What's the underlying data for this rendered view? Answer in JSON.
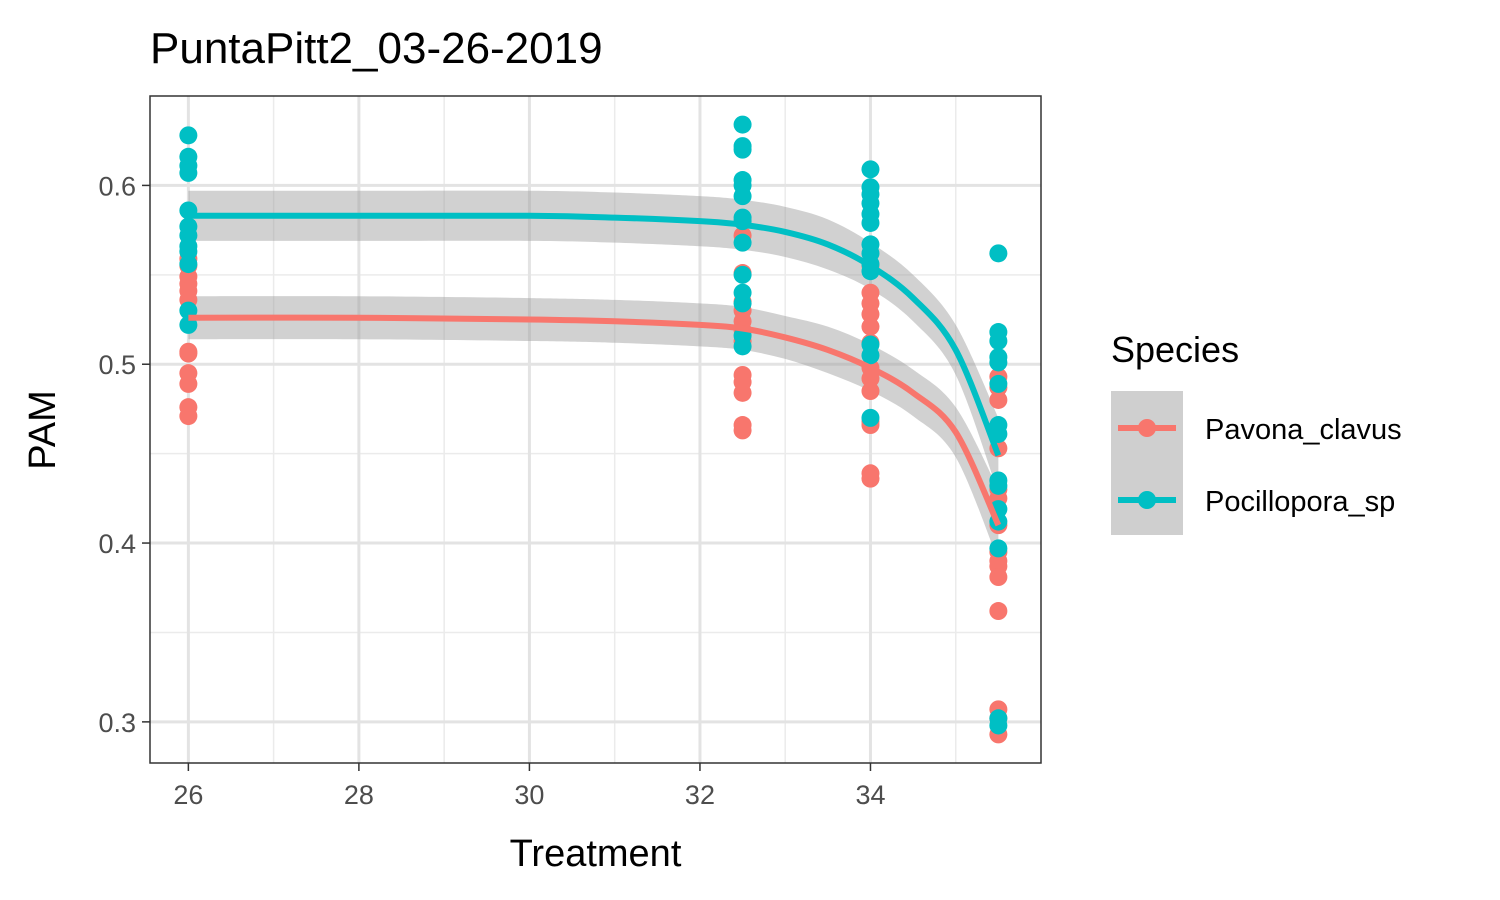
{
  "chart_data": {
    "type": "scatter",
    "title": "PuntaPitt2_03-26-2019",
    "xlabel": "Treatment",
    "ylabel": "PAM",
    "xlim": [
      25.55,
      36.0
    ],
    "ylim": [
      0.277,
      0.65
    ],
    "x_ticks": [
      26,
      28,
      30,
      32,
      34
    ],
    "x_tick_labels": [
      "26",
      "28",
      "30",
      "32",
      "34"
    ],
    "y_ticks": [
      0.3,
      0.4,
      0.5,
      0.6
    ],
    "y_tick_labels": [
      "0.3",
      "0.4",
      "0.5",
      "0.6"
    ],
    "grid": true,
    "legend": {
      "title": "Species",
      "position": "right"
    },
    "series": [
      {
        "name": "Pavona_clavus",
        "color": "#F8766D",
        "points": {
          "26": [
            0.559,
            0.555,
            0.549,
            0.545,
            0.541,
            0.536,
            0.507,
            0.506,
            0.495,
            0.489,
            0.476,
            0.471
          ],
          "32.5": [
            0.572,
            0.551,
            0.535,
            0.53,
            0.524,
            0.519,
            0.513,
            0.494,
            0.49,
            0.484,
            0.466,
            0.463
          ],
          "34": [
            0.555,
            0.54,
            0.534,
            0.528,
            0.521,
            0.512,
            0.498,
            0.492,
            0.485,
            0.468,
            0.466,
            0.439,
            0.436
          ],
          "35.5": [
            0.493,
            0.487,
            0.48,
            0.453,
            0.43,
            0.425,
            0.41,
            0.395,
            0.39,
            0.387,
            0.381,
            0.362,
            0.307,
            0.302,
            0.293
          ]
        },
        "fit": {
          "x": [
            26,
            28,
            30,
            31,
            32,
            32.5,
            33,
            33.5,
            34,
            34.5,
            35,
            35.5
          ],
          "y": [
            0.526,
            0.526,
            0.525,
            0.524,
            0.522,
            0.52,
            0.515,
            0.508,
            0.498,
            0.484,
            0.462,
            0.41
          ],
          "ci_upper": [
            0.538,
            0.538,
            0.537,
            0.536,
            0.534,
            0.532,
            0.527,
            0.521,
            0.511,
            0.497,
            0.476,
            0.43
          ],
          "ci_lower": [
            0.514,
            0.514,
            0.513,
            0.512,
            0.51,
            0.508,
            0.503,
            0.495,
            0.485,
            0.471,
            0.448,
            0.39
          ]
        }
      },
      {
        "name": "Pocillopora_sp",
        "color": "#00BFC4",
        "points": {
          "26": [
            0.628,
            0.616,
            0.611,
            0.607,
            0.586,
            0.577,
            0.572,
            0.566,
            0.563,
            0.556,
            0.53,
            0.522
          ],
          "32.5": [
            0.634,
            0.622,
            0.62,
            0.603,
            0.6,
            0.594,
            0.582,
            0.58,
            0.568,
            0.55,
            0.54,
            0.534,
            0.516,
            0.51
          ],
          "34": [
            0.609,
            0.599,
            0.595,
            0.59,
            0.584,
            0.579,
            0.567,
            0.562,
            0.556,
            0.552,
            0.511,
            0.505,
            0.47
          ],
          "35.5": [
            0.562,
            0.518,
            0.513,
            0.504,
            0.501,
            0.489,
            0.466,
            0.461,
            0.435,
            0.432,
            0.419,
            0.412,
            0.397,
            0.302,
            0.298
          ]
        },
        "fit": {
          "x": [
            26,
            28,
            30,
            31,
            32,
            32.5,
            33,
            33.5,
            34,
            34.5,
            35,
            35.5
          ],
          "y": [
            0.583,
            0.583,
            0.583,
            0.582,
            0.58,
            0.578,
            0.574,
            0.567,
            0.555,
            0.537,
            0.508,
            0.449
          ],
          "ci_upper": [
            0.597,
            0.597,
            0.597,
            0.596,
            0.594,
            0.592,
            0.588,
            0.581,
            0.568,
            0.55,
            0.522,
            0.47
          ],
          "ci_lower": [
            0.569,
            0.569,
            0.569,
            0.568,
            0.566,
            0.564,
            0.56,
            0.553,
            0.542,
            0.524,
            0.494,
            0.428
          ]
        }
      }
    ]
  }
}
